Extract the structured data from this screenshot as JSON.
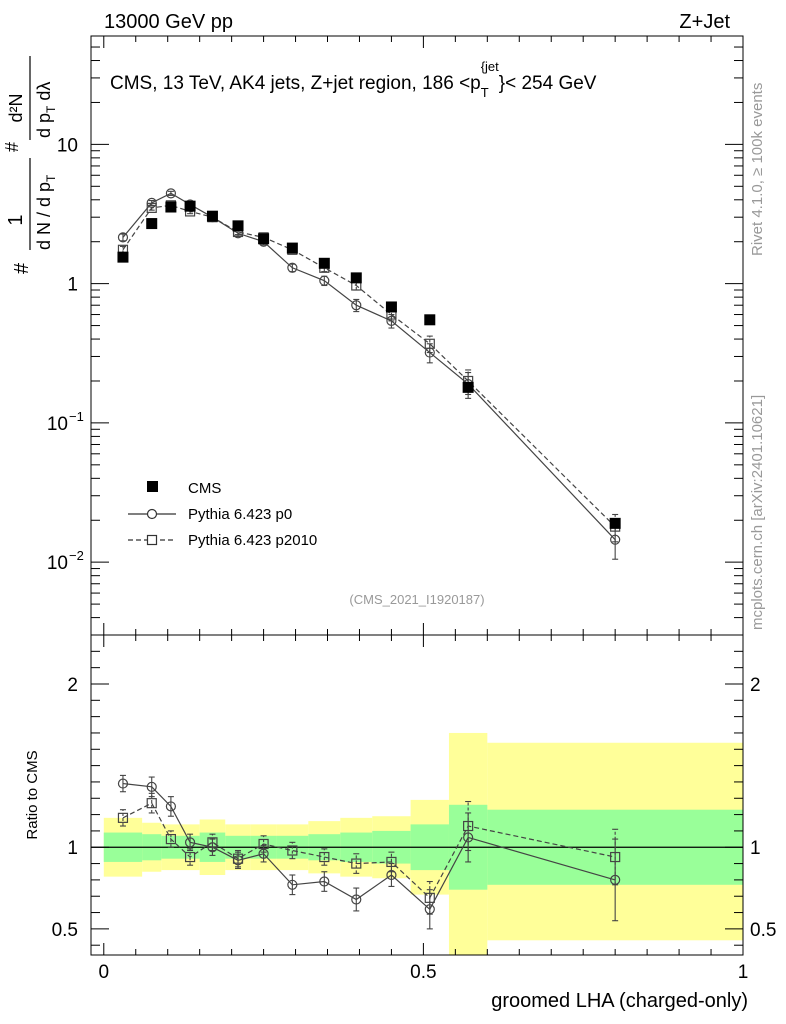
{
  "header": {
    "left": "13000 GeV pp",
    "right": "Z+Jet"
  },
  "side_labels": {
    "rivet": "Rivet 4.1.0, ≥ 100k events",
    "mcplots": "mcplots.cern.ch [arXiv:2401.10621]"
  },
  "chart_data": [
    {
      "type": "scatter",
      "panel": "main",
      "title": "CMS, 13 TeV, AK4 jets, Z+jet region, 186 <p_T^{jet}< 254 GeV",
      "title_parts": {
        "pre": "CMS, 13 TeV, AK4 jets, Z+jet region, 186 <p",
        "sub": "T",
        "sup": "{jet",
        "post": "}< 254 GeV"
      },
      "ylabel": "1/(dN/dp_T) d²N/(dp_T dλ)",
      "ylabel_parts": {
        "num1": "1",
        "den1": "d N / d p",
        "numA": "#",
        "den1T": "T",
        "num2": "d²N",
        "den2": "d p",
        "den2b": " dλ",
        "den2T": "T",
        "hash": "#"
      },
      "yscale": "log",
      "ylim": [
        0.003,
        60
      ],
      "yticks": [
        {
          "value": 0.01,
          "base": "10",
          "exp": "−2"
        },
        {
          "value": 0.1,
          "base": "10",
          "exp": "−1"
        },
        {
          "value": 1,
          "base": "1",
          "exp": ""
        },
        {
          "value": 10,
          "base": "10",
          "exp": ""
        }
      ],
      "xlim": [
        -0.02,
        1.0
      ],
      "watermark": "(CMS_2021_I1920187)",
      "legend": {
        "position": "bottom-left",
        "entries": [
          "CMS",
          "Pythia 6.423 p0",
          "Pythia 6.423 p2010"
        ]
      },
      "series": [
        {
          "name": "CMS",
          "style": "filled-square",
          "x": [
            0.03,
            0.075,
            0.105,
            0.135,
            0.17,
            0.21,
            0.25,
            0.295,
            0.345,
            0.395,
            0.45,
            0.51,
            0.57,
            0.8
          ],
          "values": [
            1.55,
            2.7,
            3.55,
            3.6,
            3.05,
            2.6,
            2.1,
            1.8,
            1.4,
            1.1,
            0.68,
            0.55,
            0.18,
            0.019
          ]
        },
        {
          "name": "Pythia 6.423 p0",
          "style": "open-circle-solid",
          "x": [
            0.03,
            0.075,
            0.105,
            0.135,
            0.17,
            0.21,
            0.25,
            0.295,
            0.345,
            0.395,
            0.45,
            0.51,
            0.57,
            0.8
          ],
          "values": [
            2.15,
            3.8,
            4.45,
            3.7,
            3.0,
            2.3,
            2.0,
            1.3,
            1.05,
            0.7,
            0.54,
            0.32,
            0.19,
            0.0145
          ],
          "err": [
            0.12,
            0.15,
            0.15,
            0.12,
            0.1,
            0.1,
            0.1,
            0.08,
            0.08,
            0.07,
            0.06,
            0.05,
            0.04,
            0.004
          ]
        },
        {
          "name": "Pythia 6.423 p2010",
          "style": "open-square-dashed",
          "x": [
            0.03,
            0.075,
            0.105,
            0.135,
            0.17,
            0.21,
            0.25,
            0.295,
            0.345,
            0.395,
            0.45,
            0.51,
            0.57,
            0.8
          ],
          "values": [
            1.75,
            3.5,
            3.65,
            3.3,
            3.0,
            2.35,
            2.15,
            1.75,
            1.3,
            0.97,
            0.6,
            0.37,
            0.2,
            0.018
          ],
          "err": [
            0.1,
            0.13,
            0.13,
            0.12,
            0.1,
            0.1,
            0.1,
            0.08,
            0.08,
            0.07,
            0.06,
            0.05,
            0.04,
            0.004
          ]
        }
      ]
    },
    {
      "type": "scatter",
      "panel": "ratio",
      "ylabel": "Ratio to CMS",
      "xlabel": "groomed LHA (charged-only)",
      "ylim": [
        0.34,
        2.3
      ],
      "yticks": [
        0.5,
        1,
        2
      ],
      "ytick_labels": [
        "0.5",
        "1",
        "2"
      ],
      "xlim": [
        -0.02,
        1.0
      ],
      "xticks": [
        0,
        0.5,
        1
      ],
      "xtick_labels": [
        "0",
        "0.5",
        "1"
      ],
      "bands": {
        "edges": [
          0.0,
          0.06,
          0.09,
          0.12,
          0.15,
          0.19,
          0.23,
          0.27,
          0.32,
          0.37,
          0.42,
          0.48,
          0.54,
          0.6,
          1.0
        ],
        "green_lo": [
          0.91,
          0.92,
          0.93,
          0.93,
          0.91,
          0.93,
          0.93,
          0.93,
          0.92,
          0.91,
          0.9,
          0.86,
          0.74,
          0.77
        ],
        "green_hi": [
          1.09,
          1.08,
          1.07,
          1.07,
          1.09,
          1.07,
          1.07,
          1.07,
          1.08,
          1.09,
          1.1,
          1.14,
          1.26,
          1.23
        ],
        "yellow_lo": [
          0.82,
          0.85,
          0.86,
          0.86,
          0.83,
          0.86,
          0.86,
          0.86,
          0.84,
          0.82,
          0.81,
          0.71,
          0.34,
          0.43
        ],
        "yellow_hi": [
          1.18,
          1.15,
          1.14,
          1.14,
          1.17,
          1.14,
          1.14,
          1.14,
          1.16,
          1.18,
          1.19,
          1.29,
          1.7,
          1.64
        ]
      },
      "series": [
        {
          "name": "Pythia 6.423 p0",
          "style": "open-circle-solid",
          "x": [
            0.03,
            0.075,
            0.105,
            0.135,
            0.17,
            0.21,
            0.25,
            0.295,
            0.345,
            0.395,
            0.45,
            0.51,
            0.57,
            0.8
          ],
          "values": [
            1.39,
            1.37,
            1.25,
            1.03,
            1.0,
            0.92,
            0.96,
            0.77,
            0.79,
            0.68,
            0.83,
            0.62,
            1.06,
            0.8
          ],
          "err": [
            0.05,
            0.06,
            0.06,
            0.05,
            0.05,
            0.05,
            0.05,
            0.06,
            0.06,
            0.07,
            0.07,
            0.12,
            0.15,
            0.25
          ]
        },
        {
          "name": "Pythia 6.423 p2010",
          "style": "open-square-dashed",
          "x": [
            0.03,
            0.075,
            0.105,
            0.135,
            0.17,
            0.21,
            0.25,
            0.295,
            0.345,
            0.395,
            0.45,
            0.51,
            0.57,
            0.8
          ],
          "values": [
            1.18,
            1.27,
            1.05,
            0.94,
            1.03,
            0.93,
            1.02,
            0.98,
            0.94,
            0.9,
            0.91,
            0.69,
            1.13,
            0.94
          ],
          "err": [
            0.05,
            0.06,
            0.05,
            0.05,
            0.05,
            0.05,
            0.05,
            0.05,
            0.05,
            0.06,
            0.06,
            0.1,
            0.15,
            0.17
          ]
        }
      ]
    }
  ]
}
